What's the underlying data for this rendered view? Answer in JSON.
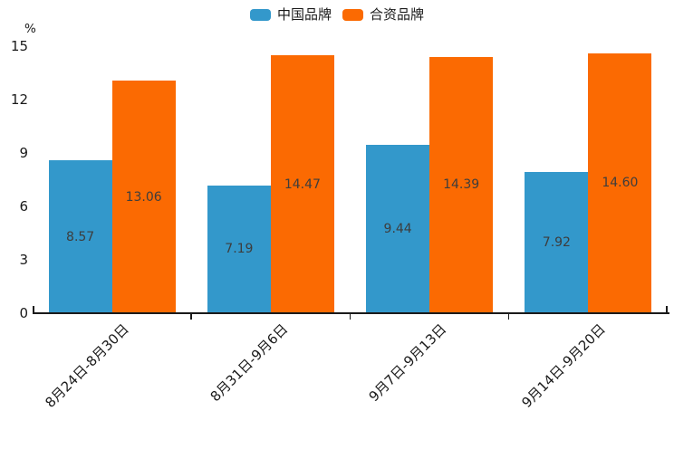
{
  "chart_data": {
    "type": "bar",
    "title": "",
    "unit_label": "%",
    "categories": [
      "8月24日-8月30日",
      "8月31日-9月6日",
      "9月7日-9月13日",
      "9月14日-9月20日"
    ],
    "series": [
      {
        "name": "中国品牌",
        "color": "#3398cb",
        "values": [
          8.57,
          7.19,
          9.44,
          7.92
        ],
        "labels": [
          "8.57",
          "7.19",
          "9.44",
          "7.92"
        ]
      },
      {
        "name": "合资品牌",
        "color": "#fb6a02",
        "values": [
          13.06,
          14.47,
          14.39,
          14.6
        ],
        "labels": [
          "13.06",
          "14.47",
          "14.39",
          "14.60"
        ]
      }
    ],
    "ylim": [
      0,
      15
    ],
    "yticks": [
      "0",
      "3",
      "6",
      "9",
      "12",
      "15"
    ],
    "xlabel": "",
    "ylabel": "%",
    "legend_position": "top-center",
    "grid": false,
    "axis_color": "#1a1a1a",
    "value_label_color": "#3d3d3d"
  }
}
